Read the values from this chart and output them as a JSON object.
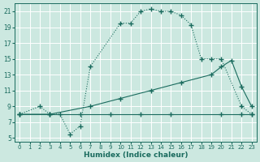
{
  "xlabel": "Humidex (Indice chaleur)",
  "bg_color": "#cce8e0",
  "grid_color": "#ffffff",
  "line_color": "#1a6b5e",
  "xlim": [
    -0.5,
    23.5
  ],
  "ylim": [
    4.5,
    22.0
  ],
  "xticks": [
    0,
    1,
    2,
    3,
    4,
    5,
    6,
    7,
    8,
    9,
    10,
    11,
    12,
    13,
    14,
    15,
    16,
    17,
    18,
    19,
    20,
    21,
    22,
    23
  ],
  "yticks": [
    5,
    7,
    9,
    11,
    13,
    15,
    17,
    19,
    21
  ],
  "line1_x": [
    0,
    2,
    3,
    4,
    5,
    6,
    7,
    10,
    11,
    12,
    13,
    14,
    15,
    16,
    17,
    18,
    19,
    20,
    22,
    23
  ],
  "line1_y": [
    8,
    9,
    8,
    8,
    5.5,
    6.5,
    14,
    19.5,
    19.5,
    21,
    21.3,
    21,
    21,
    20.5,
    19.3,
    15,
    15,
    15,
    9,
    8
  ],
  "line2_x": [
    0,
    3,
    7,
    10,
    13,
    16,
    19,
    20,
    21,
    22,
    23
  ],
  "line2_y": [
    8,
    8,
    9,
    10,
    11,
    12,
    13,
    14,
    14.8,
    11.5,
    9
  ],
  "line3_x": [
    0,
    3,
    6,
    9,
    12,
    15,
    20,
    22,
    23
  ],
  "line3_y": [
    8,
    8,
    8,
    8,
    8,
    8,
    8,
    8,
    8
  ]
}
